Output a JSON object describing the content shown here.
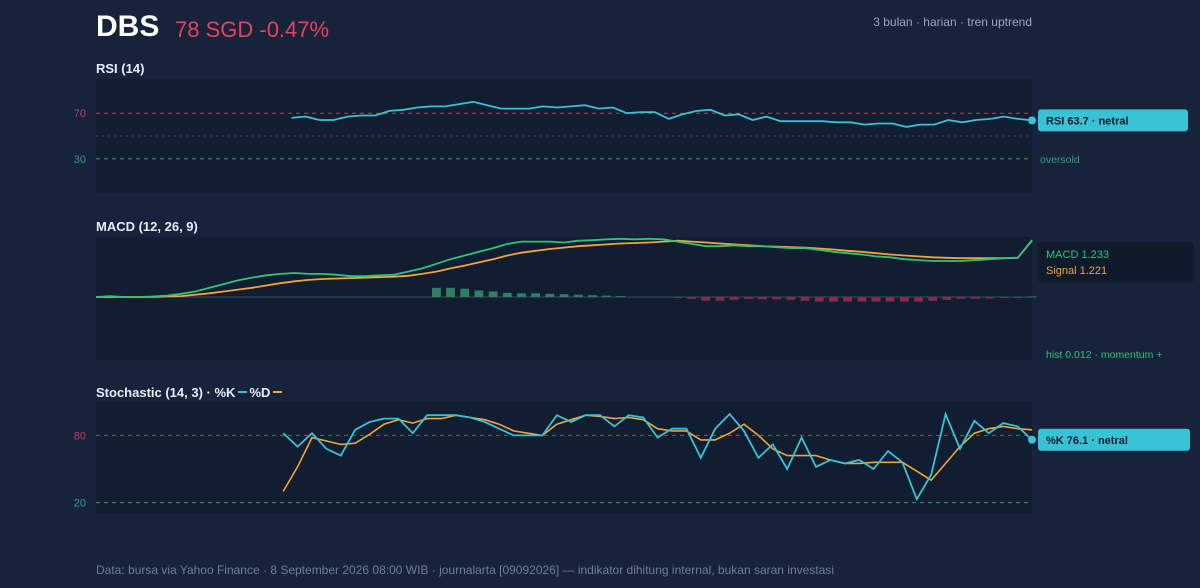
{
  "header": {
    "ticker": "DBS",
    "price": "78 SGD -0.47%",
    "meta": "3 bulan · harian · tren uptrend"
  },
  "colors": {
    "background": "#16233b",
    "panel": "#111d30",
    "price_down": "#e4435d",
    "rsi_line": "#38c2d6",
    "macd_line": "#2fc27a",
    "signal_line": "#f2a33a",
    "hist_pos": "#2f8064",
    "hist_neg": "#8a2a48",
    "overbought": "#c73a52",
    "oversold": "#2fa27a",
    "stoch_k": "#38c2d6",
    "stoch_d": "#f2a33a"
  },
  "chart_data": [
    {
      "type": "line",
      "title": "RSI (14)",
      "ylim": [
        0,
        100
      ],
      "y_ticks": [
        70,
        30
      ],
      "mid_line": 50,
      "annotations": {
        "oversold": "oversold",
        "callout": "RSI 63.7 · netral"
      },
      "series": [
        {
          "values": [
            null,
            null,
            null,
            null,
            null,
            null,
            null,
            null,
            null,
            null,
            null,
            null,
            null,
            null,
            66,
            67,
            64,
            64,
            67,
            68,
            68,
            72,
            73,
            75,
            76,
            76,
            78,
            80,
            77,
            74,
            74,
            74,
            76,
            75,
            76,
            77,
            74,
            75,
            70,
            71,
            71,
            65,
            69,
            72,
            73,
            68,
            69,
            64,
            67,
            63,
            63,
            63,
            63,
            62,
            62,
            60,
            61,
            61,
            58,
            60,
            60,
            64,
            62,
            64,
            65,
            67,
            65,
            63.7
          ]
        }
      ]
    },
    {
      "type": "line",
      "title": "MACD (12, 26, 9)",
      "annotations": {
        "macd_label": "MACD 1.233",
        "signal_label": "Signal 1.221",
        "hist_label": "hist 0.012 · momentum +"
      },
      "series": [
        {
          "name": "MACD",
          "values": [
            0.0,
            0.02,
            0.0,
            0.0,
            0.01,
            0.03,
            0.07,
            0.12,
            0.2,
            0.28,
            0.36,
            0.42,
            0.47,
            0.5,
            0.52,
            0.5,
            0.5,
            0.48,
            0.45,
            0.45,
            0.47,
            0.48,
            0.55,
            0.62,
            0.72,
            0.82,
            0.9,
            0.98,
            1.06,
            1.15,
            1.2,
            1.2,
            1.2,
            1.18,
            1.22,
            1.23,
            1.25,
            1.26,
            1.25,
            1.26,
            1.25,
            1.2,
            1.15,
            1.1,
            1.1,
            1.12,
            1.1,
            1.1,
            1.08,
            1.06,
            1.06,
            1.02,
            0.98,
            0.95,
            0.92,
            0.88,
            0.86,
            0.82,
            0.8,
            0.78,
            0.78,
            0.78,
            0.8,
            0.82,
            0.84,
            0.85,
            1.233
          ]
        },
        {
          "name": "Signal",
          "values": [
            0.0,
            0.0,
            0.0,
            0.0,
            0.0,
            0.01,
            0.02,
            0.05,
            0.08,
            0.12,
            0.16,
            0.2,
            0.25,
            0.3,
            0.34,
            0.37,
            0.39,
            0.4,
            0.41,
            0.42,
            0.43,
            0.44,
            0.46,
            0.5,
            0.55,
            0.62,
            0.68,
            0.75,
            0.82,
            0.9,
            0.96,
            1.0,
            1.04,
            1.07,
            1.1,
            1.12,
            1.14,
            1.16,
            1.17,
            1.18,
            1.2,
            1.22,
            1.2,
            1.18,
            1.16,
            1.14,
            1.12,
            1.1,
            1.09,
            1.08,
            1.07,
            1.05,
            1.03,
            1.0,
            0.98,
            0.95,
            0.92,
            0.9,
            0.88,
            0.86,
            0.85,
            0.84,
            0.84,
            0.84,
            0.84,
            0.85,
            1.221
          ]
        },
        {
          "name": "Histogram",
          "values": [
            null,
            null,
            null,
            null,
            null,
            null,
            null,
            null,
            null,
            null,
            null,
            null,
            null,
            null,
            null,
            null,
            null,
            null,
            null,
            null,
            null,
            null,
            null,
            null,
            0.2,
            0.2,
            0.18,
            0.14,
            0.12,
            0.09,
            0.08,
            0.08,
            0.07,
            0.06,
            0.05,
            0.04,
            0.03,
            0.02,
            null,
            null,
            null,
            -0.02,
            -0.04,
            -0.08,
            -0.08,
            -0.06,
            -0.04,
            -0.05,
            -0.05,
            -0.06,
            -0.08,
            -0.1,
            -0.1,
            -0.1,
            -0.1,
            -0.1,
            -0.1,
            -0.1,
            -0.1,
            -0.08,
            -0.06,
            -0.04,
            -0.04,
            -0.03,
            -0.02,
            -0.01,
            0.012
          ]
        }
      ]
    },
    {
      "type": "line",
      "title": "Stochastic (14, 3) · %K",
      "legend": [
        "%K",
        "%D"
      ],
      "ylim": [
        0,
        100
      ],
      "y_ticks": [
        80,
        20
      ],
      "annotations": {
        "callout": "%K 76.1 · netral"
      },
      "series": [
        {
          "name": "%K",
          "values": [
            null,
            null,
            null,
            null,
            null,
            null,
            null,
            null,
            null,
            null,
            null,
            null,
            null,
            82,
            70,
            82,
            68,
            62,
            85,
            92,
            95,
            95,
            82,
            98,
            98,
            98,
            96,
            92,
            86,
            80,
            80,
            80,
            98,
            92,
            98,
            98,
            88,
            98,
            96,
            78,
            86,
            86,
            60,
            86,
            99,
            84,
            60,
            72,
            50,
            78,
            52,
            58,
            55,
            58,
            50,
            66,
            56,
            23,
            45,
            99,
            68,
            93,
            82,
            91,
            88,
            76.1
          ]
        },
        {
          "name": "%D",
          "values": [
            null,
            null,
            null,
            null,
            null,
            null,
            null,
            null,
            null,
            null,
            null,
            null,
            null,
            30,
            52,
            78,
            75,
            72,
            73,
            81,
            90,
            94,
            91,
            95,
            95,
            98,
            96,
            94,
            90,
            84,
            82,
            80,
            90,
            94,
            98,
            97,
            95,
            96,
            94,
            86,
            84,
            84,
            76,
            76,
            82,
            90,
            80,
            68,
            62,
            62,
            62,
            58,
            55,
            55,
            56,
            56,
            56,
            48,
            40,
            55,
            70,
            82,
            86,
            88,
            86,
            85
          ]
        }
      ]
    }
  ],
  "footer": "Data: bursa via Yahoo Finance · 8 September 2026 08:00 WIB · journalarta [09092026] — indikator dihitung internal, bukan saran investasi"
}
